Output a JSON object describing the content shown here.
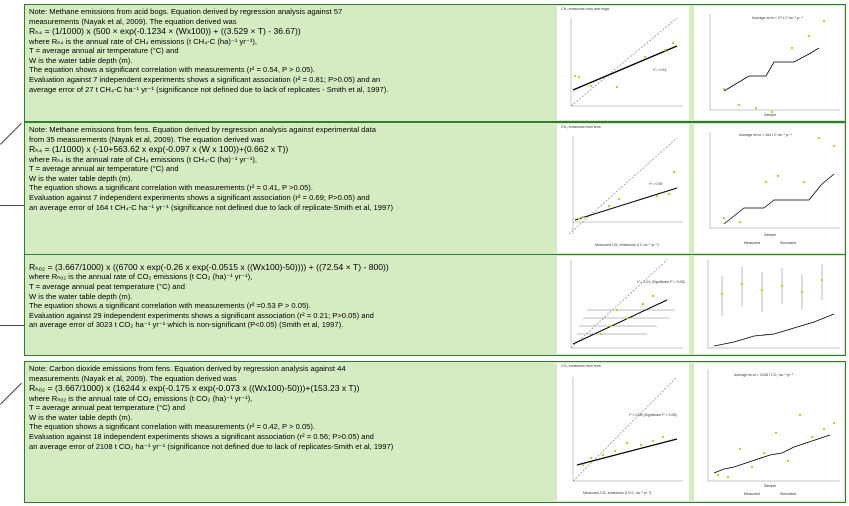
{
  "panels": [
    {
      "lines": [
        "Note: Methane emissions from acid bogs. Equation derived by regression analysis against 57",
        "measurements (Nayak et al, 2009). The equation derived was",
        "Rₕ₄ = (1/1000) x (500 × exp(-0.1234 × (Wx100)) + ((3.529 × T) - 36.67))",
        "where Rₕ₄ is the annual rate of CH₄ emissions (t CH₄-C (ha)⁻¹ yr⁻¹),",
        "T = average annual air temperature (°C) and",
        "W is the water table depth (m).",
        "The equation shows a significant correlation with measurements (r² = 0.54, P > 0.05).",
        "Evaluation against 7 independent experiments shows a significant  association (r² = 0.81; P>0.05) and an",
        "average error of 27 t CH₄-C ha⁻¹ yr⁻¹ (significance not defined due to lack of replicates - Smith et al, 1997)."
      ],
      "charts": {
        "left": {
          "title": "CH₄ emissions from acid bogs",
          "xlabel": "",
          "ylabel": "Simulated CH₄ emissions (t C ha⁻¹ yr⁻¹)",
          "note": "r² = 0.81"
        },
        "right": {
          "title": "",
          "annotation": "Average error = 27 t C ha⁻¹ yr⁻¹",
          "xlabel": "Sample",
          "ylabel": "CH₄ emissions (t C ha⁻¹ yr⁻¹)"
        }
      }
    },
    {
      "lines": [
        "Note: Methane emissions from fens. Equation derived by regression analysis against experimental data",
        "from 35 measurements (Nayak et al, 2009). The equation derived was",
        "Rₕ₄ = (1/1000) x (-10+563.62 x exp(-0.097 x (W x 100))+(0.662 x T))",
        "where Rₕ₄ is the annual rate of CH₄ emissions (t CH₄-C (ha)⁻¹ yr⁻¹),",
        "T = average annual air temperature (°C) and",
        "W is the water table depth (m).",
        "The equation shows a significant correlation with measurements (r² = 0.41, P >0.05).",
        "Evaluation against 7 independent experiments shows a significant  association (r² = 0.69; P>0.05) and",
        "an average error of 164 t CH₄-C ha⁻¹ yr⁻¹ (significance not defined due to lack of replicate-Smith et al, 1997)"
      ],
      "charts": {
        "left": {
          "title": "CH₄ emissions from fens",
          "xlabel": "Measured CH₄ emissions (t C ha⁻¹ yr⁻¹)",
          "ylabel": "Simulated CH₄ emissions (t C ha⁻¹ yr⁻¹)",
          "note": "r² = 0.69"
        },
        "right": {
          "title": "",
          "annotation": "Average error = 164 t C ha⁻¹ yr⁻¹",
          "xlabel": "Sample",
          "ylabel": "CH₄ emissions (t C ha⁻¹ yr⁻¹)",
          "legend": [
            "Measured",
            "Simulated"
          ]
        }
      }
    },
    {
      "lines": [
        "Rₕₒ₂ = (3.667/1000) x ((6700 x exp(-0.26 x exp(-0.0515 x ((Wx100)-50)))) + ((72.54 × T) - 800))",
        "where Rₕₒ₂ is the annual rate of CO₂ emissions (t CO₂ (ha)⁻¹ yr⁻¹),",
        "T = average annual peat temperature (°C) and",
        "W is the water table depth (m).",
        "The equation shows a significant correlation with measurements (r² =0.53 P > 0.05).",
        "Evaluation against 29 independent experiments shows a significant  association (r² = 0.21; P>0.05) and",
        "an average error of 3023 t CO₂ ha⁻¹ yr⁻¹ which is non-significant (P<0.05) (Smith et al, 1997)."
      ],
      "charts": {
        "left": {
          "title": "",
          "xlabel": "",
          "ylabel": "Simulated CO₂ emissions (t CO₂ ha⁻¹ yr⁻¹)",
          "note": "r² = 0.21 (Significant P < 0.05)"
        },
        "right": {
          "title": "",
          "annotation": "",
          "xlabel": "",
          "ylabel": "CO₂ emissions (t CO₂ ha⁻¹ yr⁻¹)"
        }
      }
    },
    {
      "lines": [
        "Note: Carbon dioxide emissions from fens. Equation derived by regression analysis against 44",
        "measurements (Nayak et al, 2009). The equation derived was",
        "Rₕₒ₂ = (3.667/1000) x (16244 x exp(-0.175 x exp(-0.073 x ((Wx100)-50)))+(153.23 x T))",
        "where Rₕₒ₂ is the annual rate of CO₂ emissions (t CO₂ (ha)⁻¹ yr⁻¹),",
        "T = average annual peat temperature (°C) and",
        "W is the water table depth (m).",
        "The equation shows a significant correlation with measurements (r² = 0.42, P > 0.05).",
        "Evaluation against 18 independent experiments shows a significant  association (r² = 0.56; P>0.05) and",
        "an average error of 2108 t CO₂ ha⁻¹ yr⁻¹ (significance not defined due to lack of replicates-Smith et al, 1997)"
      ],
      "charts": {
        "left": {
          "title": "CO₂ emissions from fens",
          "xlabel": "Measured CO₂ emissions (t CO₂ ha⁻¹ yr⁻¹)",
          "ylabel": "Simulated CO₂ emissions (t CO₂ ha⁻¹ yr⁻¹)",
          "note": "r² = 0.56 (Significant P < 0.05)"
        },
        "right": {
          "title": "",
          "annotation": "Average error = 2108 t CO₂ ha⁻¹ yr⁻¹",
          "xlabel": "Sample",
          "ylabel": "CO₂ emissions (t CO₂ ha⁻¹ yr⁻¹)",
          "legend": [
            "Measured",
            "Simulated"
          ]
        }
      }
    }
  ],
  "colors": {
    "panel_fill": "#d5ecc3",
    "panel_border": "#2e7d32",
    "measured_points": "#c9c83a",
    "line": "#000000"
  }
}
